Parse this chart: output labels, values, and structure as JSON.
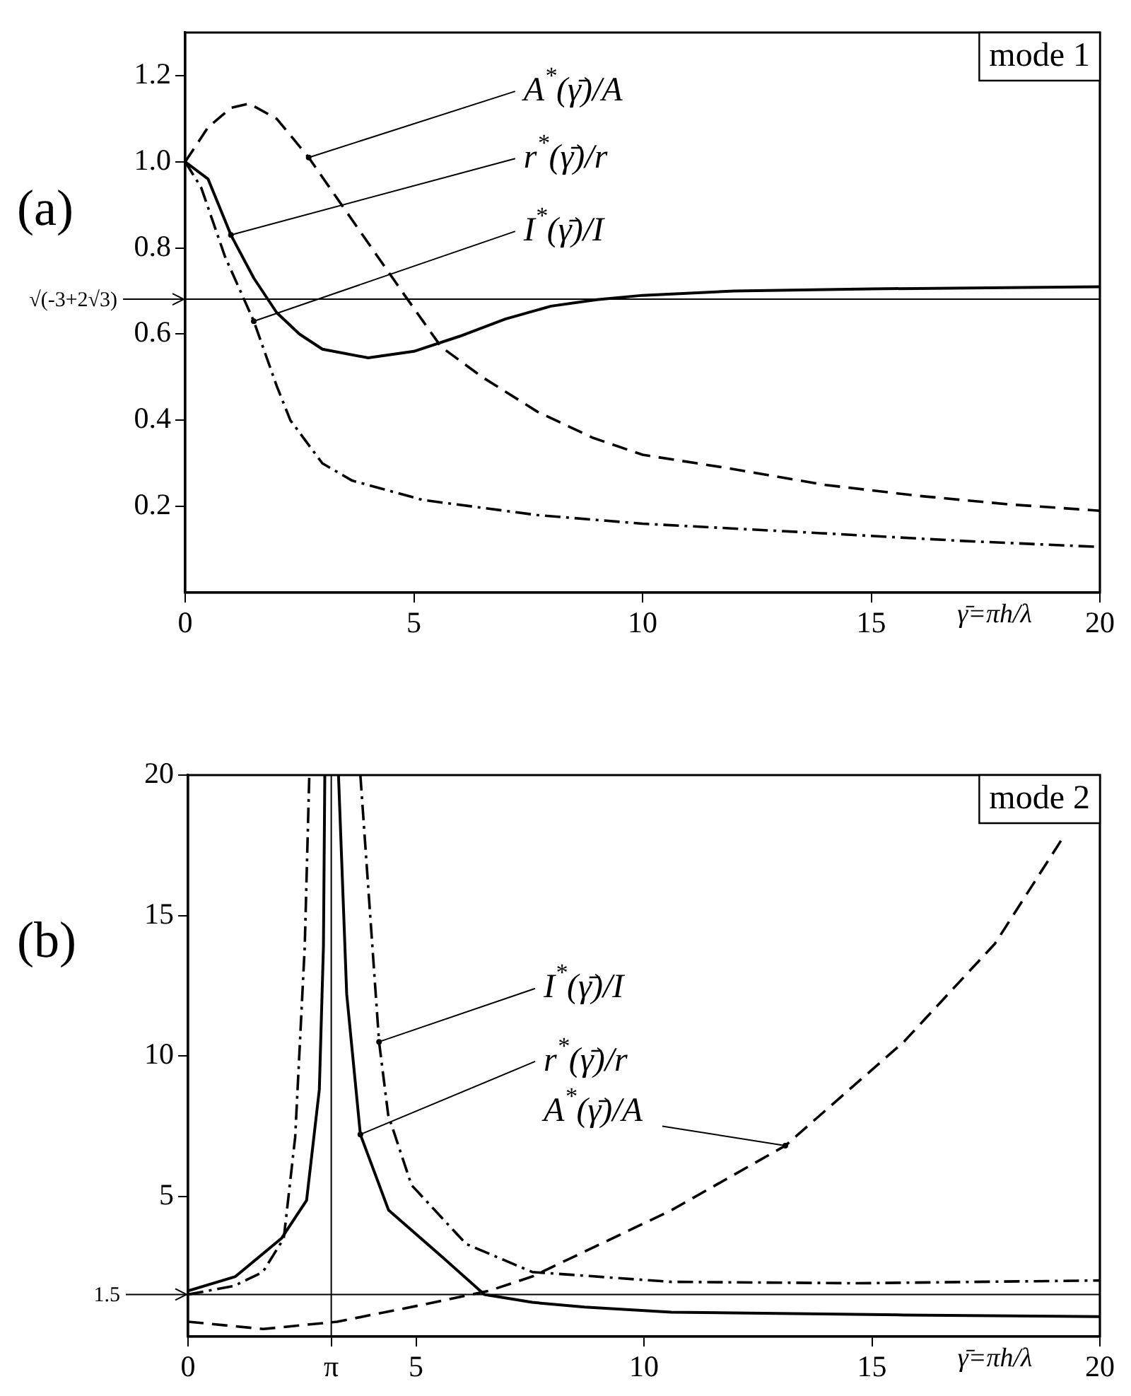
{
  "chart_data": [
    {
      "type": "line",
      "title": "(a)",
      "subtitle": "mode 1",
      "xlabel": "γ̄=πh/λ",
      "xlim": [
        0,
        20
      ],
      "xticks": [
        0,
        5,
        10,
        15,
        20
      ],
      "ylim": [
        0,
        1.3
      ],
      "yticks": [
        0.2,
        0.4,
        0.6,
        0.8,
        {
          "value": 1,
          "label": "1.0"
        },
        1.2
      ],
      "grid": false,
      "legend": false,
      "marker": "none",
      "ref_lines": [
        {
          "axis": "y",
          "value": 0.681,
          "label": "√(-3+2√3)"
        }
      ],
      "series": [
        {
          "name": "A$^{*}$(γ̄)/A",
          "color": "#000000",
          "line_style": "dashed",
          "x": [
            0,
            0.5,
            1,
            1.4,
            2,
            2.7,
            3.65,
            4.8,
            5.6,
            6.5,
            7.7,
            8.9,
            10,
            11.8,
            14,
            16,
            18,
            20
          ],
          "values": [
            1.0,
            1.08,
            1.125,
            1.135,
            1.1,
            1.01,
            0.865,
            0.69,
            0.57,
            0.5,
            0.42,
            0.36,
            0.32,
            0.29,
            0.25,
            0.225,
            0.205,
            0.19
          ]
        },
        {
          "name": "r$^{*}$(γ̄)/r",
          "color": "#000000",
          "line_style": "solid",
          "x": [
            0,
            0.5,
            1,
            1.5,
            2,
            2.5,
            3,
            4,
            5,
            6,
            7,
            8,
            9,
            10,
            12,
            15,
            20
          ],
          "values": [
            1.0,
            0.96,
            0.83,
            0.73,
            0.65,
            0.6,
            0.565,
            0.545,
            0.56,
            0.595,
            0.635,
            0.665,
            0.68,
            0.69,
            0.7,
            0.705,
            0.71
          ]
        },
        {
          "name": "I$^{*}$(γ̄)/I",
          "color": "#000000",
          "line_style": "dashdot",
          "x": [
            0,
            0.35,
            0.87,
            1.5,
            2,
            2.3,
            3,
            3.65,
            5.2,
            7.7,
            10,
            13.9,
            17,
            20
          ],
          "values": [
            1.0,
            0.94,
            0.78,
            0.63,
            0.48,
            0.4,
            0.3,
            0.26,
            0.215,
            0.18,
            0.16,
            0.138,
            0.12,
            0.106
          ]
        }
      ]
    },
    {
      "type": "line",
      "title": "(b)",
      "subtitle": "mode 2",
      "xlabel": "γ̄=πh/λ",
      "xlim": [
        0,
        20
      ],
      "xticks": [
        0,
        {
          "value": 3.14159,
          "label": "π"
        },
        5,
        10,
        15,
        20
      ],
      "ylim": [
        0,
        20
      ],
      "yticks": [
        5,
        10,
        15,
        20
      ],
      "grid": false,
      "legend": false,
      "marker": "none",
      "ref_lines": [
        {
          "axis": "y",
          "value": 1.5,
          "label": "1.5"
        },
        {
          "axis": "x",
          "value": 3.14159
        }
      ],
      "series": [
        {
          "name": "I$^{*}$(γ̄)/I",
          "color": "#000000",
          "line_style": "dashdot",
          "x": [
            0,
            1.0,
            1.64,
            2.1,
            2.35,
            2.56,
            2.66,
            3.14159,
            3.78,
            4.19,
            4.39,
            4.9,
            6.1,
            7.55,
            10.6,
            14.7,
            20
          ],
          "values": [
            1.5,
            1.8,
            2.3,
            3.5,
            7.1,
            13.9,
            20,
            null,
            20,
            10.5,
            7.9,
            5.4,
            3.3,
            2.3,
            1.95,
            1.9,
            2.0
          ]
        },
        {
          "name": "r$^{*}$(γ̄)/r",
          "color": "#000000",
          "line_style": "solid",
          "x": [
            0,
            1.04,
            2.05,
            2.6,
            2.88,
            2.97,
            3.0,
            3.14159,
            3.3,
            3.48,
            3.78,
            4.4,
            5.6,
            6.5,
            7.55,
            8.7,
            10.6,
            15.7,
            20
          ],
          "values": [
            1.63,
            2.14,
            3.5,
            4.85,
            8.8,
            13.9,
            20,
            null,
            20,
            12.2,
            7.2,
            4.5,
            2.8,
            1.5,
            1.22,
            1.05,
            0.87,
            0.77,
            0.71
          ]
        },
        {
          "name": "A$^{*}$(γ̄)/A",
          "color": "#000000",
          "line_style": "dashed",
          "x": [
            0,
            1.65,
            3.27,
            5.1,
            6.6,
            7.55,
            10.6,
            13.1,
            15.7,
            17.7,
            19.2
          ],
          "values": [
            0.53,
            0.27,
            0.53,
            1.12,
            1.63,
            2.14,
            4.5,
            6.8,
            10.5,
            14.0,
            17.8
          ]
        }
      ]
    }
  ]
}
